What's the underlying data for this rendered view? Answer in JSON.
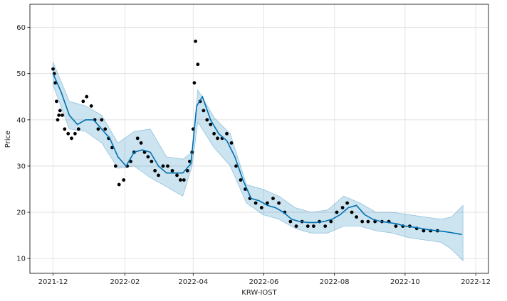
{
  "chart_data": {
    "type": "line",
    "title": "",
    "xlabel": "KRW-IOST",
    "ylabel": "Price",
    "xlim": [
      "2021-11-11",
      "2022-12-12"
    ],
    "ylim": [
      6.8,
      65
    ],
    "grid": true,
    "x_ticks": [
      {
        "date": "2021-12-01",
        "label": "2021-12"
      },
      {
        "date": "2022-02-01",
        "label": "2022-02"
      },
      {
        "date": "2022-04-01",
        "label": "2022-04"
      },
      {
        "date": "2022-06-01",
        "label": "2022-06"
      },
      {
        "date": "2022-08-01",
        "label": "2022-08"
      },
      {
        "date": "2022-10-01",
        "label": "2022-10"
      },
      {
        "date": "2022-12-01",
        "label": "2022-12"
      }
    ],
    "y_ticks": [
      10,
      20,
      30,
      40,
      50,
      60
    ],
    "colors": {
      "actual": "#000000",
      "forecast": "#0072B2",
      "interval": "#0072B2",
      "interval_opacity": 0.2,
      "grid": "#dddddd"
    },
    "series": [
      {
        "role": "actual",
        "mark": "scatter",
        "dates": [
          "2021-12-01",
          "2021-12-02",
          "2021-12-03",
          "2021-12-04",
          "2021-12-05",
          "2021-12-06",
          "2021-12-07",
          "2021-12-09",
          "2021-12-11",
          "2021-12-14",
          "2021-12-17",
          "2021-12-20",
          "2021-12-23",
          "2021-12-27",
          "2021-12-30",
          "2022-01-03",
          "2022-01-06",
          "2022-01-09",
          "2022-01-12",
          "2022-01-15",
          "2022-01-18",
          "2022-01-21",
          "2022-01-24",
          "2022-01-27",
          "2022-01-31",
          "2022-02-03",
          "2022-02-06",
          "2022-02-09",
          "2022-02-12",
          "2022-02-15",
          "2022-02-18",
          "2022-02-21",
          "2022-02-24",
          "2022-02-27",
          "2022-03-02",
          "2022-03-06",
          "2022-03-10",
          "2022-03-14",
          "2022-03-18",
          "2022-03-21",
          "2022-03-24",
          "2022-03-27",
          "2022-03-29",
          "2022-03-31",
          "2022-04-01",
          "2022-04-02",
          "2022-04-03",
          "2022-04-05",
          "2022-04-07",
          "2022-04-10",
          "2022-04-13",
          "2022-04-16",
          "2022-04-19",
          "2022-04-22",
          "2022-04-26",
          "2022-04-30",
          "2022-05-04",
          "2022-05-08",
          "2022-05-12",
          "2022-05-16",
          "2022-05-20",
          "2022-05-25",
          "2022-05-30",
          "2022-06-04",
          "2022-06-09",
          "2022-06-14",
          "2022-06-19",
          "2022-06-24",
          "2022-06-29",
          "2022-07-04",
          "2022-07-09",
          "2022-07-14",
          "2022-07-19",
          "2022-07-24",
          "2022-07-29",
          "2022-08-03",
          "2022-08-08",
          "2022-08-12",
          "2022-08-16",
          "2022-08-20",
          "2022-08-25",
          "2022-08-30",
          "2022-09-05",
          "2022-09-11",
          "2022-09-17",
          "2022-09-23",
          "2022-09-29",
          "2022-10-05",
          "2022-10-11",
          "2022-10-17",
          "2022-10-23",
          "2022-10-29"
        ],
        "values": [
          51,
          50,
          48,
          44,
          40,
          41,
          42,
          41,
          38,
          37,
          36,
          37,
          38,
          44,
          45,
          43,
          40,
          38,
          40,
          38,
          36,
          34,
          30,
          26,
          27,
          30,
          31,
          33,
          36,
          35,
          33,
          32,
          31,
          29,
          28,
          30,
          30,
          29,
          28,
          27,
          27,
          29,
          31,
          33,
          38,
          48,
          57,
          52,
          44,
          42,
          40,
          39,
          37,
          36,
          36,
          37,
          35,
          30,
          27,
          25,
          23,
          22,
          21,
          22,
          23,
          22,
          20,
          18,
          17,
          18,
          17,
          17,
          18,
          17,
          18,
          20,
          21,
          22,
          20,
          19,
          18,
          18,
          18,
          18,
          18,
          17,
          17,
          17,
          16.5,
          16,
          16,
          16
        ]
      },
      {
        "role": "forecast",
        "mark": "line",
        "dates": [
          "2021-12-01",
          "2021-12-08",
          "2021-12-15",
          "2021-12-22",
          "2021-12-29",
          "2022-01-05",
          "2022-01-12",
          "2022-01-19",
          "2022-01-26",
          "2022-02-02",
          "2022-02-09",
          "2022-02-16",
          "2022-02-23",
          "2022-03-02",
          "2022-03-09",
          "2022-03-16",
          "2022-03-23",
          "2022-03-30",
          "2022-04-04",
          "2022-04-09",
          "2022-04-16",
          "2022-04-23",
          "2022-04-30",
          "2022-05-07",
          "2022-05-14",
          "2022-05-21",
          "2022-05-28",
          "2022-06-04",
          "2022-06-11",
          "2022-06-18",
          "2022-06-25",
          "2022-07-02",
          "2022-07-09",
          "2022-07-16",
          "2022-07-23",
          "2022-07-30",
          "2022-08-06",
          "2022-08-13",
          "2022-08-20",
          "2022-08-27",
          "2022-09-03",
          "2022-09-10",
          "2022-09-17",
          "2022-09-24",
          "2022-10-01",
          "2022-10-08",
          "2022-10-15",
          "2022-10-22",
          "2022-10-29",
          "2022-11-05",
          "2022-11-12",
          "2022-11-19"
        ],
        "values": [
          50,
          46,
          41,
          39,
          40,
          40,
          38,
          36,
          32,
          30,
          33,
          33.5,
          33,
          30,
          28.5,
          28.5,
          28.5,
          30.5,
          43,
          45,
          40,
          37,
          35.5,
          32,
          27,
          23,
          22.5,
          21.5,
          21,
          20,
          18.5,
          18,
          17.8,
          17.8,
          18,
          18.5,
          19.5,
          21,
          21.5,
          19.5,
          18.5,
          18,
          17.8,
          17.5,
          17,
          16.8,
          16.5,
          16.2,
          16,
          15.8,
          15.5,
          15.2
        ]
      },
      {
        "role": "uncertainty_interval",
        "mark": "area",
        "dates": [
          "2021-12-01",
          "2021-12-15",
          "2021-12-29",
          "2022-01-12",
          "2022-01-26",
          "2022-02-09",
          "2022-02-23",
          "2022-03-09",
          "2022-03-23",
          "2022-03-31",
          "2022-04-05",
          "2022-04-19",
          "2022-05-03",
          "2022-05-17",
          "2022-05-31",
          "2022-06-14",
          "2022-06-28",
          "2022-07-12",
          "2022-07-26",
          "2022-08-09",
          "2022-08-23",
          "2022-09-06",
          "2022-09-20",
          "2022-10-04",
          "2022-10-18",
          "2022-11-01",
          "2022-11-10",
          "2022-11-20"
        ],
        "lower": [
          47.5,
          38,
          37.5,
          35,
          29.5,
          30,
          27.5,
          25.5,
          23.5,
          30,
          39.5,
          34,
          30,
          22,
          19.5,
          18.5,
          16.5,
          15.5,
          15.5,
          17,
          17,
          16,
          15.5,
          14.5,
          14,
          13.5,
          12,
          9.5
        ],
        "upper": [
          52.5,
          44,
          43,
          41,
          35,
          37.5,
          38,
          32,
          31.5,
          33,
          46.5,
          40.5,
          37,
          26,
          25,
          23.5,
          21,
          20,
          20.5,
          23.5,
          22,
          20,
          20,
          19.5,
          19,
          18.5,
          19,
          21.5
        ]
      }
    ]
  }
}
